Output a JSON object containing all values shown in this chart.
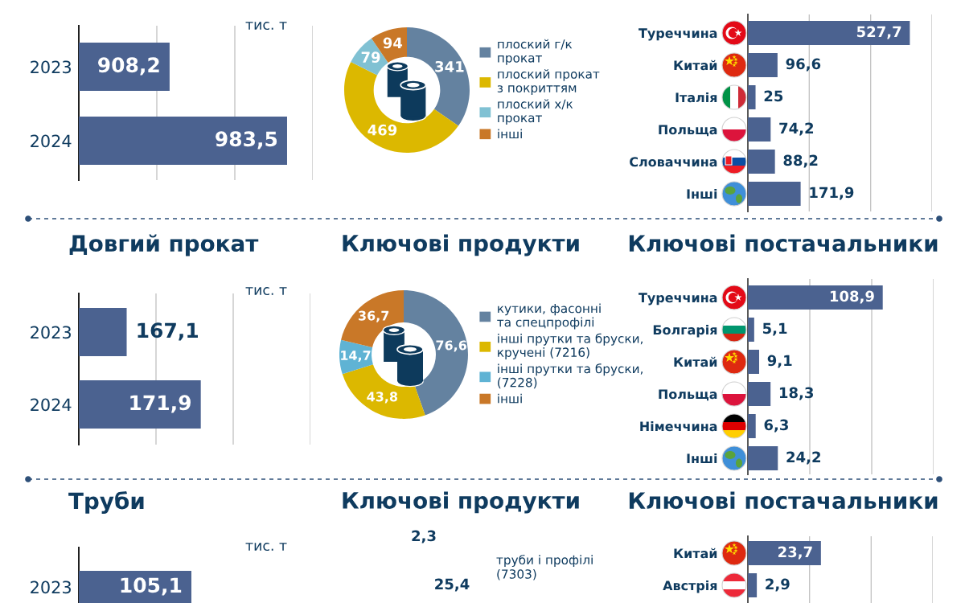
{
  "chart_data": [
    {
      "type": "bar",
      "orientation": "horizontal",
      "categories": [
        "2023",
        "2024"
      ],
      "values": [
        908.2,
        983.5
      ],
      "value_labels": [
        "908,2",
        "983,5"
      ],
      "color": "#4b6290",
      "xlim": [
        850,
        1000
      ],
      "xticks": [
        {
          "value": 900,
          "label": null
        },
        {
          "value": 950,
          "label": null
        },
        {
          "value": 1000,
          "label": null
        }
      ],
      "grid": "x",
      "tick_labels": "y",
      "annotations": [
        "тис. т"
      ]
    },
    {
      "type": "donut",
      "categories": [
        "плоский г/к\nпрокат",
        "плоский прокат\nз покриттям",
        "плоский х/к\nпрокат",
        "інші"
      ],
      "values": [
        341,
        469,
        79,
        94
      ],
      "value_labels": [
        "341",
        "469",
        "79",
        "94"
      ],
      "colors": [
        "#6482a0",
        "#dcb800",
        "#80c1d3",
        "#c97828"
      ],
      "legend": "right"
    },
    {
      "type": "bar",
      "orientation": "horizontal",
      "categories": [
        "Туреччина",
        "Китай",
        "Італія",
        "Польща",
        "Словаччина",
        "Інші"
      ],
      "values": [
        527.7,
        96.6,
        25,
        74.2,
        88.2,
        171.9
      ],
      "value_labels": [
        "527,7",
        "96,6",
        "25",
        "74,2",
        "88,2",
        "171,9"
      ],
      "color": "#4b6290",
      "xlim": [
        0,
        600
      ],
      "xticks": [
        {
          "value": 200,
          "label": null
        },
        {
          "value": 400,
          "label": null
        },
        {
          "value": 600,
          "label": null
        }
      ],
      "grid": "x",
      "tick_labels": "y"
    },
    {
      "type": "bar",
      "title": "Довгий прокат",
      "orientation": "horizontal",
      "categories": [
        "2023",
        "2024"
      ],
      "values": [
        167.1,
        171.9
      ],
      "value_labels": [
        "167,1",
        "171,9"
      ],
      "color": "#4b6290",
      "xlim": [
        164,
        179
      ],
      "xticks": [
        {
          "value": 169,
          "label": null
        },
        {
          "value": 174,
          "label": null
        },
        {
          "value": 179,
          "label": null
        }
      ],
      "grid": "x",
      "tick_labels": "y",
      "annotations": [
        "тис. т"
      ]
    },
    {
      "type": "donut",
      "title": "Ключові продукти",
      "categories": [
        "кутики, фасонні\nта спецпрофілі",
        "інші прутки та бруски,\nкручені (7216)",
        "інші прутки та бруски,\n(7228)",
        "інші"
      ],
      "values": [
        76.6,
        43.8,
        14.7,
        36.7
      ],
      "value_labels": [
        "76,6",
        "43,8",
        "14,7",
        "36,7"
      ],
      "colors": [
        "#6482a0",
        "#dcb800",
        "#5fb3d4",
        "#c97828"
      ],
      "legend": "right"
    },
    {
      "type": "bar",
      "title": "Ключові постачальники",
      "orientation": "horizontal",
      "categories": [
        "Туреччина",
        "Болгарія",
        "Китай",
        "Польща",
        "Німеччина",
        "Інші"
      ],
      "values": [
        108.9,
        5.1,
        9.1,
        18.3,
        6.3,
        24.2
      ],
      "value_labels": [
        "108,9",
        "5,1",
        "9,1",
        "18,3",
        "6,3",
        "24,2"
      ],
      "color": "#4b6290",
      "xlim": [
        0,
        150
      ],
      "xticks": [
        {
          "value": 50,
          "label": null
        },
        {
          "value": 100,
          "label": null
        },
        {
          "value": 150,
          "label": null
        }
      ],
      "grid": "x",
      "tick_labels": "y"
    },
    {
      "type": "bar",
      "title": "Труби",
      "orientation": "horizontal",
      "categories": [
        "2023"
      ],
      "values": [
        105.1
      ],
      "value_labels": [
        "105,1"
      ],
      "color": "#4b6290",
      "tick_labels": "y",
      "annotations": [
        "тис. т"
      ]
    },
    {
      "type": "other",
      "title": "Ключові продукти",
      "annotations": [
        "2,3",
        "25,4",
        "труби і профілі\n(7303)"
      ]
    },
    {
      "type": "bar",
      "title": "Ключові постачальники",
      "orientation": "horizontal",
      "categories": [
        "Китай",
        "Австрія"
      ],
      "values": [
        23.7,
        2.9
      ],
      "value_labels": [
        "23,7",
        "2,9"
      ],
      "color": "#4b6290",
      "xlim": [
        0,
        60
      ],
      "xticks": [
        {
          "value": 20,
          "label": null
        },
        {
          "value": 40,
          "label": null
        },
        {
          "value": 60,
          "label": null
        }
      ],
      "grid": "x",
      "tick_labels": "y"
    }
  ]
}
